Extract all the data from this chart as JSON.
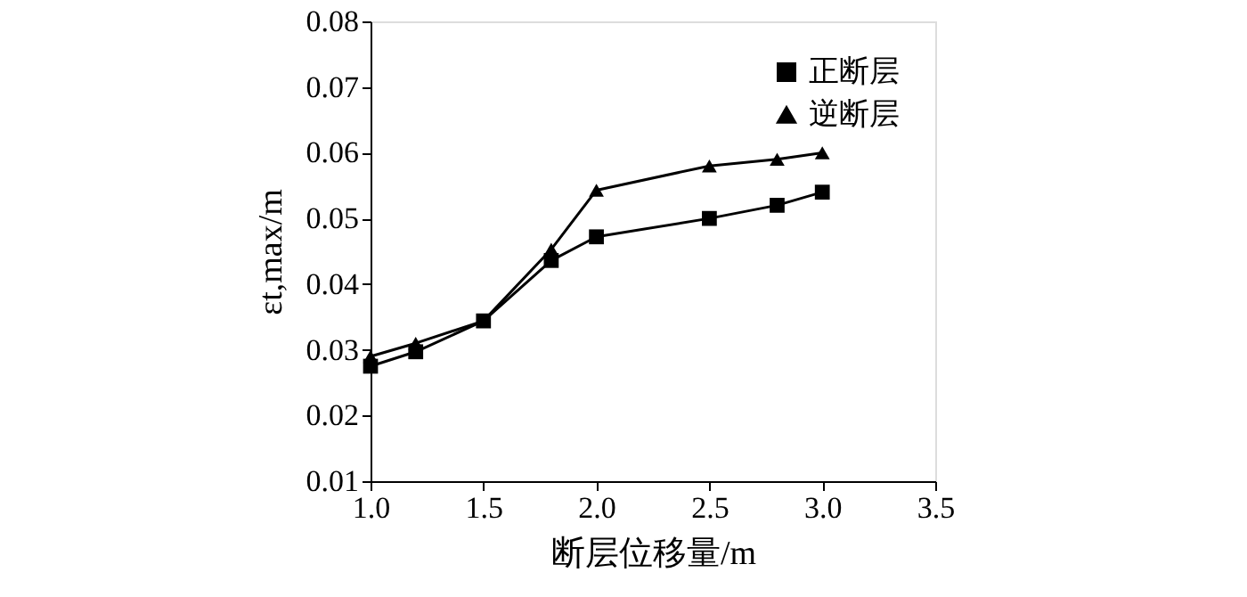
{
  "chart_data": {
    "type": "line",
    "xlabel": "断层位移量/m",
    "ylabel": "εt,max/m",
    "x": [
      1.0,
      1.2,
      1.5,
      1.8,
      2.0,
      2.5,
      2.8,
      3.0
    ],
    "series": [
      {
        "name": "正断层",
        "color": "#000000",
        "marker": "square",
        "values": [
          0.0275,
          0.0297,
          0.0344,
          0.0436,
          0.0472,
          0.05,
          0.052,
          0.054
        ]
      },
      {
        "name": "逆断层",
        "color": "#000000",
        "marker": "triangle",
        "values": [
          0.029,
          0.031,
          0.0344,
          0.0453,
          0.0543,
          0.058,
          0.059,
          0.06
        ]
      }
    ],
    "xlim": [
      1.0,
      3.5
    ],
    "xticks": [
      {
        "value": 1.0,
        "label": "1.0"
      },
      {
        "value": 1.5,
        "label": "1.5"
      },
      {
        "value": 2.0,
        "label": "2.0"
      },
      {
        "value": 2.5,
        "label": "2.5"
      },
      {
        "value": 3.0,
        "label": "3.0"
      },
      {
        "value": 3.5,
        "label": "3.5"
      }
    ],
    "ylim": [
      0.01,
      0.08
    ],
    "yticks": [
      0.01,
      0.02,
      0.03,
      0.04,
      0.05,
      0.06,
      0.07,
      0.08
    ],
    "grid": false,
    "legend": "top right",
    "line_style": "solid"
  }
}
